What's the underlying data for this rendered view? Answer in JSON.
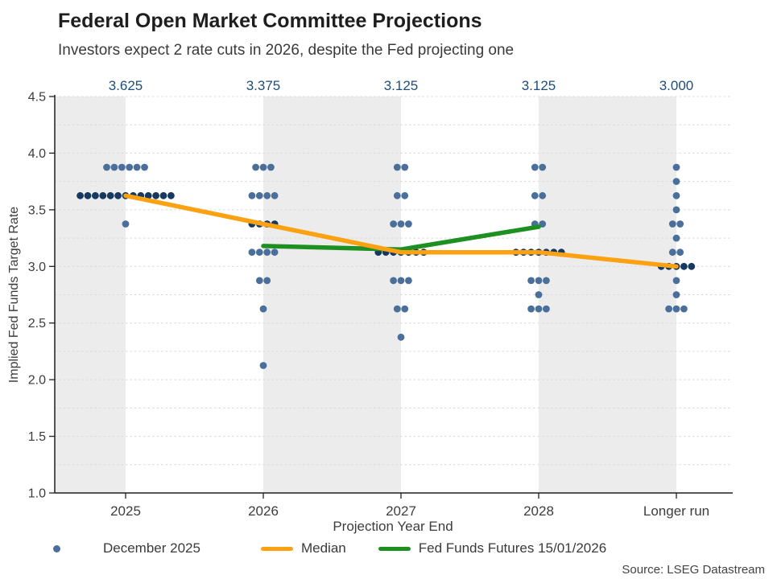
{
  "header": {
    "title": "Federal Open Market Committee Projections",
    "subtitle": "Investors expect 2 rate cuts in 2026, despite the Fed projecting one"
  },
  "chart_data": {
    "type": "scatter",
    "title": "Federal Open Market Committee Projections",
    "subtitle": "Investors expect 2 rate cuts in 2026, despite the Fed projecting one",
    "xlabel": "Projection Year End",
    "ylabel": "Implied Fed Funds Target Rate",
    "ylim": [
      1.0,
      4.5
    ],
    "yticks": [
      1.0,
      1.5,
      2.0,
      2.5,
      3.0,
      3.5,
      4.0,
      4.5
    ],
    "grid": "dashed horizontal lines every 0.25, alternating vertical gray bands per category",
    "categories": [
      "2025",
      "2026",
      "2027",
      "2028",
      "Longer run"
    ],
    "median_top_labels": [
      "3.625",
      "3.375",
      "3.125",
      "3.125",
      "3.000"
    ],
    "dot_series": {
      "name": "December 2025",
      "columns": [
        {
          "category": "2025",
          "rows": [
            {
              "rate": 3.875,
              "count": 6
            },
            {
              "rate": 3.625,
              "count": 13,
              "is_median": true
            },
            {
              "rate": 3.375,
              "count": 1
            }
          ]
        },
        {
          "category": "2026",
          "rows": [
            {
              "rate": 3.875,
              "count": 3
            },
            {
              "rate": 3.625,
              "count": 4
            },
            {
              "rate": 3.375,
              "count": 4,
              "is_median": true
            },
            {
              "rate": 3.125,
              "count": 4
            },
            {
              "rate": 2.875,
              "count": 2
            },
            {
              "rate": 2.625,
              "count": 1
            },
            {
              "rate": 2.125,
              "count": 1
            }
          ]
        },
        {
          "category": "2027",
          "rows": [
            {
              "rate": 3.875,
              "count": 2
            },
            {
              "rate": 3.625,
              "count": 2
            },
            {
              "rate": 3.375,
              "count": 3
            },
            {
              "rate": 3.125,
              "count": 7,
              "is_median": true
            },
            {
              "rate": 2.875,
              "count": 3
            },
            {
              "rate": 2.625,
              "count": 2
            },
            {
              "rate": 2.375,
              "count": 1
            }
          ]
        },
        {
          "category": "2028",
          "rows": [
            {
              "rate": 3.875,
              "count": 2
            },
            {
              "rate": 3.625,
              "count": 2
            },
            {
              "rate": 3.375,
              "count": 2
            },
            {
              "rate": 3.125,
              "count": 7,
              "is_median": true
            },
            {
              "rate": 2.875,
              "count": 3
            },
            {
              "rate": 2.75,
              "count": 1
            },
            {
              "rate": 2.625,
              "count": 3
            }
          ]
        },
        {
          "category": "Longer run",
          "rows": [
            {
              "rate": 3.875,
              "count": 1
            },
            {
              "rate": 3.75,
              "count": 1
            },
            {
              "rate": 3.625,
              "count": 1
            },
            {
              "rate": 3.5,
              "count": 1
            },
            {
              "rate": 3.375,
              "count": 2
            },
            {
              "rate": 3.25,
              "count": 1
            },
            {
              "rate": 3.125,
              "count": 2
            },
            {
              "rate": 3.0,
              "count": 5,
              "is_median": true
            },
            {
              "rate": 2.875,
              "count": 1
            },
            {
              "rate": 2.75,
              "count": 1
            },
            {
              "rate": 2.625,
              "count": 3
            }
          ]
        }
      ]
    },
    "line_series": [
      {
        "name": "Median",
        "color": "#FBA112",
        "categories": [
          "2025",
          "2026",
          "2027",
          "2028",
          "Longer run"
        ],
        "values": [
          3.625,
          3.375,
          3.125,
          3.125,
          3.0
        ]
      },
      {
        "name": "Fed Funds Futures 15/01/2026",
        "color": "#1E8F21",
        "categories": [
          "2026",
          "2027",
          "2028"
        ],
        "values": [
          3.18,
          3.15,
          3.35
        ]
      }
    ],
    "colors": {
      "dot": "#4A6F9B",
      "dot_median": "#15395F",
      "band": "#ECECEC",
      "grid": "#D8D8D8",
      "top_label": "#1F4E79",
      "axis": "#1F1F1F",
      "text": "#3D3D3D"
    },
    "legend": {
      "position": "bottom",
      "entries": [
        {
          "label": "December 2025",
          "marker": "dot"
        },
        {
          "label": "Median",
          "marker": "orange-line"
        },
        {
          "label": "Fed Funds Futures 15/01/2026",
          "marker": "green-line"
        }
      ]
    }
  },
  "footer": {
    "source": "Source: LSEG Datastream"
  }
}
